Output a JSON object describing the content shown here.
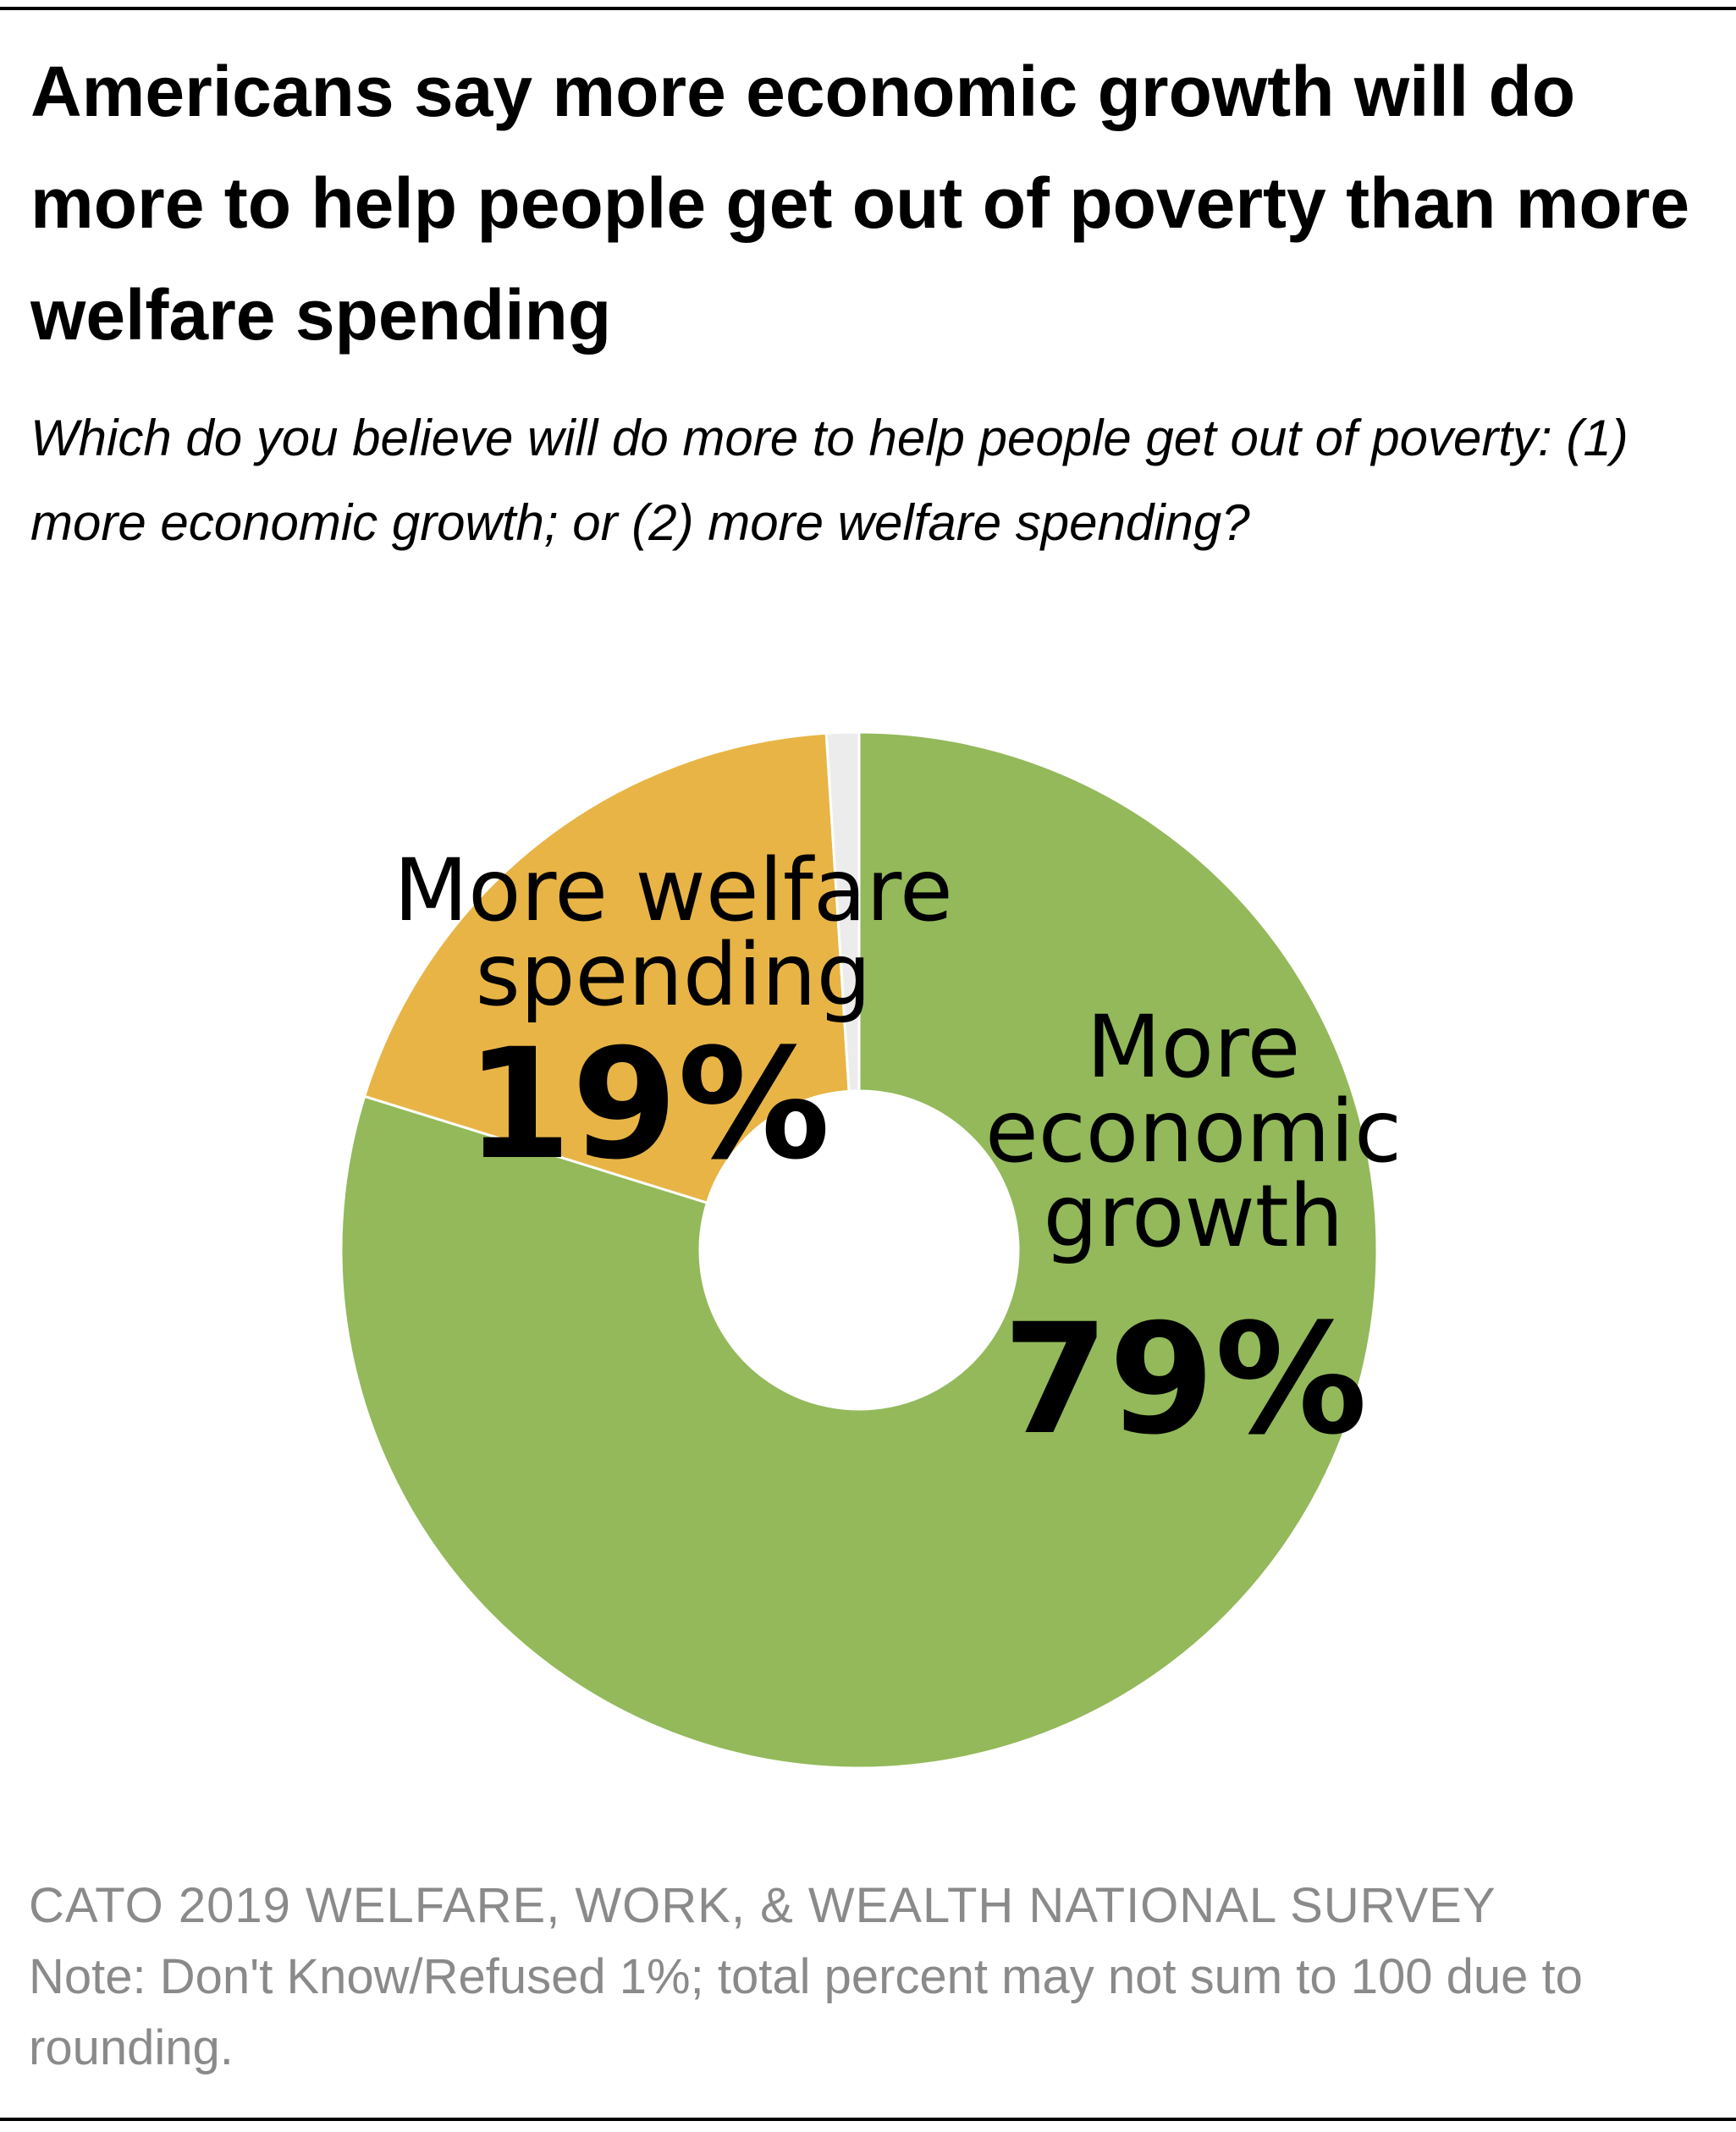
{
  "header": {
    "title": "Americans say more economic growth will do more to help people get out of poverty than more welfare spending",
    "subtitle": "Which do you believe will do more to help people get out of poverty: (1) more economic growth; or (2) more welfare spending?"
  },
  "footer": {
    "source": "CATO 2019 WELFARE, WORK, & WEALTH NATIONAL SURVEY",
    "note": "Note: Don't Know/Refused 1%; total percent may not sum to 100 due to rounding."
  },
  "chart_data": {
    "type": "pie",
    "style": "donut",
    "start": "12 o'clock",
    "direction": "clockwise",
    "slices": [
      {
        "label_lines": [
          "More",
          "economic",
          "growth"
        ],
        "value": 79,
        "value_label": "79%",
        "color": "#93B95A"
      },
      {
        "label_lines": [
          "More welfare",
          "spending"
        ],
        "value": 19,
        "value_label": "19%",
        "color": "#E8B445"
      },
      {
        "label_lines": [],
        "value": 1,
        "value_label": "",
        "color": "#ECECEC"
      }
    ]
  }
}
